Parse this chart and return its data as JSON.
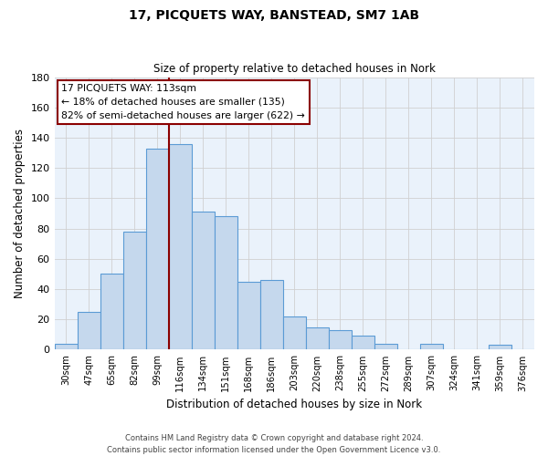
{
  "title": "17, PICQUETS WAY, BANSTEAD, SM7 1AB",
  "subtitle": "Size of property relative to detached houses in Nork",
  "xlabel": "Distribution of detached houses by size in Nork",
  "ylabel": "Number of detached properties",
  "bar_labels": [
    "30sqm",
    "47sqm",
    "65sqm",
    "82sqm",
    "99sqm",
    "116sqm",
    "134sqm",
    "151sqm",
    "168sqm",
    "186sqm",
    "203sqm",
    "220sqm",
    "238sqm",
    "255sqm",
    "272sqm",
    "289sqm",
    "307sqm",
    "324sqm",
    "341sqm",
    "359sqm",
    "376sqm"
  ],
  "bar_values": [
    4,
    25,
    50,
    78,
    133,
    136,
    91,
    88,
    45,
    46,
    22,
    15,
    13,
    9,
    4,
    0,
    4,
    0,
    0,
    3,
    0
  ],
  "bar_color": "#c5d8ed",
  "bar_edge_color": "#5b9bd5",
  "vline_color": "#8b0000",
  "annotation_title": "17 PICQUETS WAY: 113sqm",
  "annotation_line1": "← 18% of detached houses are smaller (135)",
  "annotation_line2": "82% of semi-detached houses are larger (622) →",
  "annotation_box_color": "#ffffff",
  "annotation_box_edge": "#8b0000",
  "ylim": [
    0,
    180
  ],
  "yticks": [
    0,
    20,
    40,
    60,
    80,
    100,
    120,
    140,
    160,
    180
  ],
  "footer1": "Contains HM Land Registry data © Crown copyright and database right 2024.",
  "footer2": "Contains public sector information licensed under the Open Government Licence v3.0.",
  "bg_color": "#ffffff",
  "grid_color": "#d0d0d0",
  "vline_index": 5
}
